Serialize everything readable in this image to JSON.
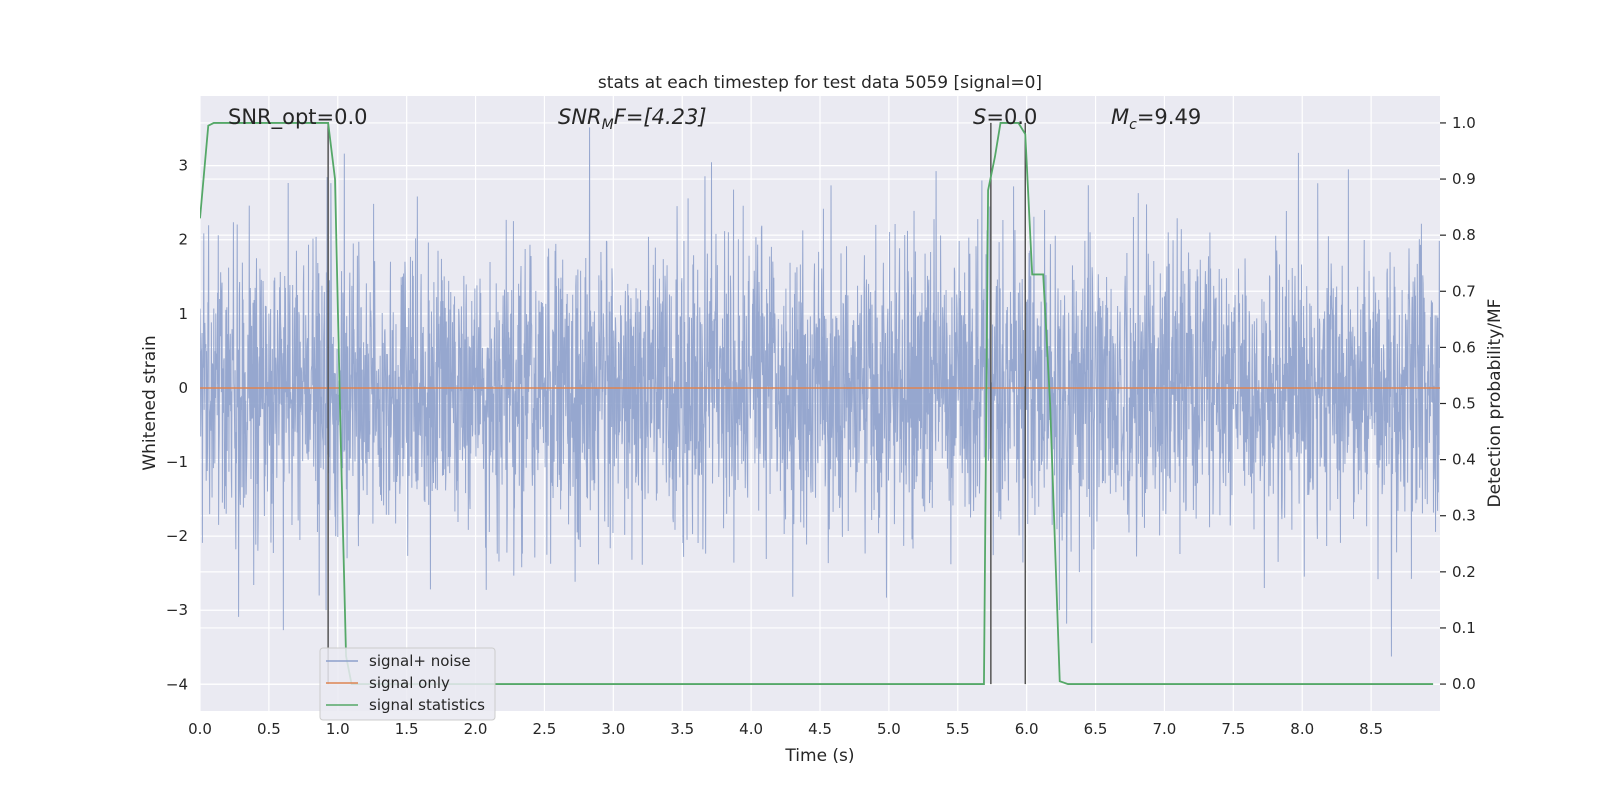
{
  "chart_data": {
    "type": "line",
    "title": "stats at each timestep for test data 5059 [signal=0]",
    "xlabel": "Time (s)",
    "ylabel_left": "Whitened strain",
    "ylabel_right": "Detection probability/MF",
    "xlim": [
      0,
      9
    ],
    "ylim_left": [
      -4.36,
      3.94
    ],
    "ylim_right": [
      -0.048,
      1.048
    ],
    "xticks": [
      0.0,
      0.5,
      1.0,
      1.5,
      2.0,
      2.5,
      3.0,
      3.5,
      4.0,
      4.5,
      5.0,
      5.5,
      6.0,
      6.5,
      7.0,
      7.5,
      8.0,
      8.5
    ],
    "xtick_labels": [
      "0.0",
      "0.5",
      "1.0",
      "1.5",
      "2.0",
      "2.5",
      "3.0",
      "3.5",
      "4.0",
      "4.5",
      "5.0",
      "5.5",
      "6.0",
      "6.5",
      "7.0",
      "7.5",
      "8.0",
      "8.5"
    ],
    "yticks_left": [
      3,
      2,
      1,
      0,
      -1,
      -2,
      -3,
      -4
    ],
    "ytick_labels_left": [
      "3",
      "2",
      "1",
      "0",
      "−1",
      "−2",
      "−3",
      "−4"
    ],
    "yticks_right": [
      1.0,
      0.9,
      0.8,
      0.7,
      0.6,
      0.5,
      0.4,
      0.3,
      0.2,
      0.1,
      0.0
    ],
    "ytick_labels_right": [
      "1.0",
      "0.9",
      "0.8",
      "0.7",
      "0.6",
      "0.5",
      "0.4",
      "0.3",
      "0.2",
      "0.1",
      "0.0"
    ],
    "grid": true,
    "legend_position": "lower-left",
    "background": "#eaeaf2",
    "annotations": {
      "snr_opt": "SNR_opt=0.0",
      "snr_mf_main": "SNR",
      "snr_mf_sub": "M",
      "snr_mf_rest": "F=[4.23]",
      "s_main": "S",
      "s_rest": "=0.0",
      "mc_main": "M",
      "mc_sub": "c",
      "mc_rest": "=9.49"
    },
    "vertical_lines_x": [
      0.93,
      5.74,
      5.99
    ],
    "series": [
      {
        "name": "signal+ noise",
        "axis": "left",
        "color": "#8da0cb",
        "sample_interval": 0.0025,
        "sigma": 1.0,
        "seed": 5059
      },
      {
        "name": "signal only",
        "axis": "left",
        "color": "#dd8452",
        "x": [
          0,
          9
        ],
        "y": [
          0,
          0
        ]
      },
      {
        "name": "signal statistics",
        "axis": "right",
        "color": "#55a868",
        "x": [
          0.0,
          0.06,
          0.1,
          0.2,
          0.4,
          0.6,
          0.8,
          0.93,
          0.98,
          1.02,
          1.06,
          1.1,
          1.2,
          2.0,
          3.0,
          4.0,
          5.0,
          5.5,
          5.69,
          5.72,
          5.77,
          5.81,
          5.88,
          5.94,
          5.99,
          6.04,
          6.07,
          6.12,
          6.17,
          6.24,
          6.3,
          7.0,
          8.0,
          8.95
        ],
        "y": [
          0.83,
          0.995,
          1.0,
          1.0,
          1.0,
          1.0,
          1.0,
          1.0,
          0.9,
          0.45,
          0.05,
          0.0,
          0.0,
          0.0,
          0.0,
          0.0,
          0.0,
          0.0,
          0.0,
          0.88,
          0.94,
          1.0,
          1.0,
          1.0,
          0.98,
          0.73,
          0.73,
          0.73,
          0.5,
          0.005,
          0.0,
          0.0,
          0.0,
          0.0
        ]
      }
    ]
  }
}
